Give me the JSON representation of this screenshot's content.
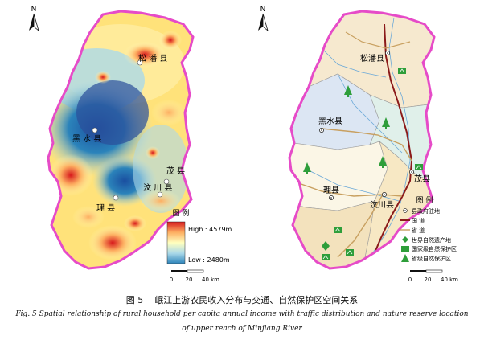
{
  "left_map": {
    "north_label": "N",
    "counties": [
      "松 潘 县",
      "黑 水 县",
      "茂 县",
      "汶 川 县",
      "理 县"
    ],
    "legend_title": "图  例",
    "legend_high": "High : 4579m",
    "legend_low": "Low : 2480m",
    "scale_labels": [
      "0",
      "20",
      "40 km"
    ],
    "colors": {
      "high": "#d7191c",
      "mid": "#ffffbf",
      "low": "#2b83ba",
      "boundary": "#e64bc8"
    }
  },
  "right_map": {
    "north_label": "N",
    "counties": [
      "松潘县",
      "黑水县",
      "茂县",
      "汶川县",
      "理县"
    ],
    "legend_title": "图  例",
    "legend_items": [
      "县政府驻地",
      "国  道",
      "省  道",
      "世界自然遗产地",
      "国家级自然保护区",
      "省级自然保护区"
    ],
    "scale_labels": [
      "0",
      "20",
      "40 km"
    ],
    "colors": {
      "national_road": "#8b1a1a",
      "provincial_road": "#c8a060",
      "reserve": "#2e9e3a",
      "boundary": "#e64bc8"
    }
  },
  "caption": {
    "cn_num": "图 5",
    "cn_text": "岷江上游农民收入分布与交通、自然保护区空间关系",
    "en_line1": "Fig. 5    Spatial relationship of rural household per capita annual income with traffic distribution and nature reserve location",
    "en_line2": "of upper reach of Minjiang River"
  }
}
